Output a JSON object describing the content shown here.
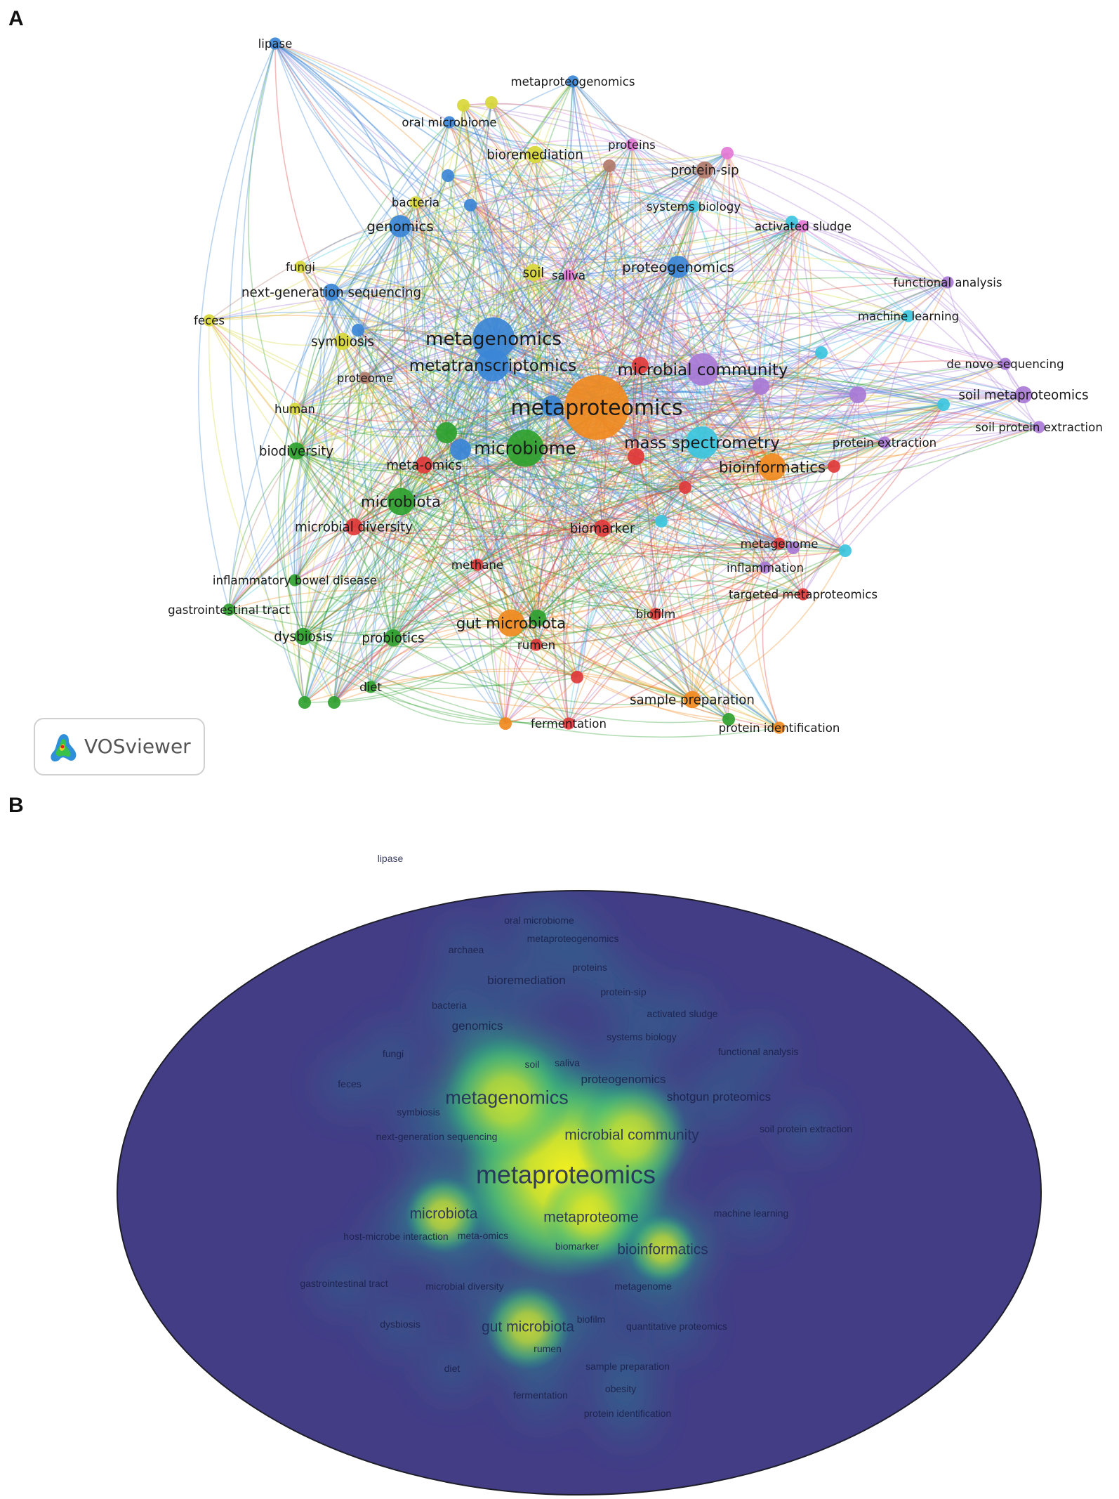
{
  "panels": {
    "a": "A",
    "b": "B"
  },
  "vosviewer": {
    "label": "VOSviewer"
  },
  "colors": {
    "red": "#e03a3a",
    "green": "#2fa12f",
    "blue": "#3b86d6",
    "yellow": "#d8d83a",
    "purple": "#a87ad6",
    "cyan": "#3cc6de",
    "orange": "#f08a1f",
    "brown": "#b17a6a",
    "pink": "#e47ad6",
    "heat_background": "#433d86"
  },
  "network": {
    "nodes": [
      {
        "label": "metaproteomics",
        "cluster": "orange",
        "weight": 10
      },
      {
        "label": "metagenomics",
        "cluster": "blue",
        "weight": 7
      },
      {
        "label": "metatranscriptomics",
        "cluster": "blue",
        "weight": 5
      },
      {
        "label": "microbiome",
        "cluster": "green",
        "weight": 6
      },
      {
        "label": "microbial community",
        "cluster": "purple",
        "weight": 5
      },
      {
        "label": "mass spectrometry",
        "cluster": "cyan",
        "weight": 5
      },
      {
        "label": "bioinformatics",
        "cluster": "orange",
        "weight": 4
      },
      {
        "label": "microbiota",
        "cluster": "green",
        "weight": 4
      },
      {
        "label": "gut microbiota",
        "cluster": "orange",
        "weight": 4
      },
      {
        "label": "genomics",
        "cluster": "blue",
        "weight": 3
      },
      {
        "label": "proteogenomics",
        "cluster": "blue",
        "weight": 3
      },
      {
        "label": "lipase",
        "cluster": "blue",
        "weight": 1
      },
      {
        "label": "metaproteogenomics",
        "cluster": "blue",
        "weight": 1
      },
      {
        "label": "oral microbiome",
        "cluster": "blue",
        "weight": 1
      },
      {
        "label": "proteins",
        "cluster": "pink",
        "weight": 1
      },
      {
        "label": "bioremediation",
        "cluster": "yellow",
        "weight": 2
      },
      {
        "label": "protein-sip",
        "cluster": "brown",
        "weight": 2
      },
      {
        "label": "bacteria",
        "cluster": "yellow",
        "weight": 1
      },
      {
        "label": "systems biology",
        "cluster": "cyan",
        "weight": 1
      },
      {
        "label": "activated sludge",
        "cluster": "pink",
        "weight": 1
      },
      {
        "label": "fungi",
        "cluster": "yellow",
        "weight": 1
      },
      {
        "label": "soil",
        "cluster": "yellow",
        "weight": 2
      },
      {
        "label": "saliva",
        "cluster": "pink",
        "weight": 1
      },
      {
        "label": "functional analysis",
        "cluster": "purple",
        "weight": 1
      },
      {
        "label": "next-generation sequencing",
        "cluster": "blue",
        "weight": 2
      },
      {
        "label": "machine learning",
        "cluster": "cyan",
        "weight": 1
      },
      {
        "label": "feces",
        "cluster": "yellow",
        "weight": 1
      },
      {
        "label": "symbiosis",
        "cluster": "yellow",
        "weight": 2
      },
      {
        "label": "de novo sequencing",
        "cluster": "purple",
        "weight": 1
      },
      {
        "label": "proteome",
        "cluster": "brown",
        "weight": 1
      },
      {
        "label": "soil metaproteomics",
        "cluster": "purple",
        "weight": 2
      },
      {
        "label": "human",
        "cluster": "yellow",
        "weight": 1
      },
      {
        "label": "soil protein extraction",
        "cluster": "purple",
        "weight": 1
      },
      {
        "label": "protein extraction",
        "cluster": "purple",
        "weight": 1
      },
      {
        "label": "biodiversity",
        "cluster": "green",
        "weight": 2
      },
      {
        "label": "meta-omics",
        "cluster": "red",
        "weight": 2
      },
      {
        "label": "microbial diversity",
        "cluster": "red",
        "weight": 2
      },
      {
        "label": "biomarker",
        "cluster": "red",
        "weight": 2
      },
      {
        "label": "metagenome",
        "cluster": "red",
        "weight": 1
      },
      {
        "label": "methane",
        "cluster": "red",
        "weight": 1
      },
      {
        "label": "inflammation",
        "cluster": "purple",
        "weight": 1
      },
      {
        "label": "inflammatory bowel disease",
        "cluster": "green",
        "weight": 1
      },
      {
        "label": "targeted metaproteomics",
        "cluster": "red",
        "weight": 1
      },
      {
        "label": "gastrointestinal tract",
        "cluster": "green",
        "weight": 1
      },
      {
        "label": "biofilm",
        "cluster": "red",
        "weight": 1
      },
      {
        "label": "dysbiosis",
        "cluster": "green",
        "weight": 2
      },
      {
        "label": "probiotics",
        "cluster": "green",
        "weight": 2
      },
      {
        "label": "rumen",
        "cluster": "red",
        "weight": 1
      },
      {
        "label": "diet",
        "cluster": "green",
        "weight": 1
      },
      {
        "label": "sample preparation",
        "cluster": "orange",
        "weight": 2
      },
      {
        "label": "fermentation",
        "cluster": "red",
        "weight": 1
      },
      {
        "label": "protein identification",
        "cluster": "orange",
        "weight": 1
      }
    ]
  },
  "density": {
    "labels": [
      {
        "label": "lipase",
        "weight": 1
      },
      {
        "label": "oral microbiome",
        "weight": 1
      },
      {
        "label": "metaproteogenomics",
        "weight": 1
      },
      {
        "label": "archaea",
        "weight": 1
      },
      {
        "label": "proteins",
        "weight": 1
      },
      {
        "label": "bioremediation",
        "weight": 2
      },
      {
        "label": "protein-sip",
        "weight": 1
      },
      {
        "label": "bacteria",
        "weight": 1
      },
      {
        "label": "activated sludge",
        "weight": 1
      },
      {
        "label": "genomics",
        "weight": 2
      },
      {
        "label": "systems biology",
        "weight": 1
      },
      {
        "label": "functional analysis",
        "weight": 1
      },
      {
        "label": "fungi",
        "weight": 1
      },
      {
        "label": "soil",
        "weight": 1
      },
      {
        "label": "saliva",
        "weight": 1
      },
      {
        "label": "proteogenomics",
        "weight": 2
      },
      {
        "label": "feces",
        "weight": 1
      },
      {
        "label": "metagenomics",
        "weight": 6
      },
      {
        "label": "shotgun proteomics",
        "weight": 2
      },
      {
        "label": "symbiosis",
        "weight": 1
      },
      {
        "label": "soil protein extraction",
        "weight": 1
      },
      {
        "label": "microbial community",
        "weight": 4
      },
      {
        "label": "next-generation sequencing",
        "weight": 1
      },
      {
        "label": "metaproteomics",
        "weight": 10
      },
      {
        "label": "microbiota",
        "weight": 3
      },
      {
        "label": "metaproteome",
        "weight": 3
      },
      {
        "label": "machine learning",
        "weight": 1
      },
      {
        "label": "host-microbe interaction",
        "weight": 1
      },
      {
        "label": "meta-omics",
        "weight": 1
      },
      {
        "label": "biomarker",
        "weight": 1
      },
      {
        "label": "bioinformatics",
        "weight": 3
      },
      {
        "label": "gastrointestinal tract",
        "weight": 1
      },
      {
        "label": "microbial diversity",
        "weight": 1
      },
      {
        "label": "metagenome",
        "weight": 1
      },
      {
        "label": "biofilm",
        "weight": 1
      },
      {
        "label": "dysbiosis",
        "weight": 1
      },
      {
        "label": "gut microbiota",
        "weight": 3
      },
      {
        "label": "quantitative proteomics",
        "weight": 1
      },
      {
        "label": "rumen",
        "weight": 1
      },
      {
        "label": "diet",
        "weight": 1
      },
      {
        "label": "sample preparation",
        "weight": 1
      },
      {
        "label": "obesity",
        "weight": 1
      },
      {
        "label": "fermentation",
        "weight": 1
      },
      {
        "label": "protein identification",
        "weight": 1
      }
    ]
  }
}
